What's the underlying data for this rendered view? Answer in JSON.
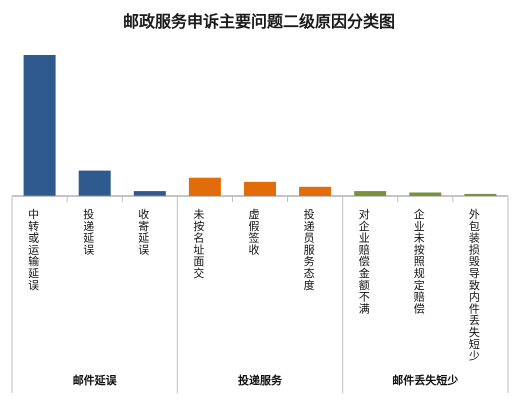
{
  "chart_data": {
    "type": "bar",
    "title": "邮政服务申诉主要问题二级原因分类图",
    "groups": [
      {
        "name": "邮件延误",
        "categories": [
          "中转或运输延误",
          "投递延误",
          "收寄延误"
        ],
        "values": [
          100,
          18,
          3.5
        ],
        "color": "#2E5A8E"
      },
      {
        "name": "投递服务",
        "categories": [
          "未按名址面交",
          "虚假签收",
          "投递员服务态度"
        ],
        "values": [
          13,
          10,
          6.5
        ],
        "color": "#E36C0A"
      },
      {
        "name": "邮件丢失短少",
        "categories": [
          "对企业赔偿金额不满",
          "企业未按照规定赔偿",
          "外包装损毁导致内件丢失短少"
        ],
        "values": [
          3.5,
          2.5,
          1.5
        ],
        "color": "#76923C"
      }
    ],
    "ylim": [
      0,
      100
    ],
    "grid": false,
    "legend": "none"
  }
}
